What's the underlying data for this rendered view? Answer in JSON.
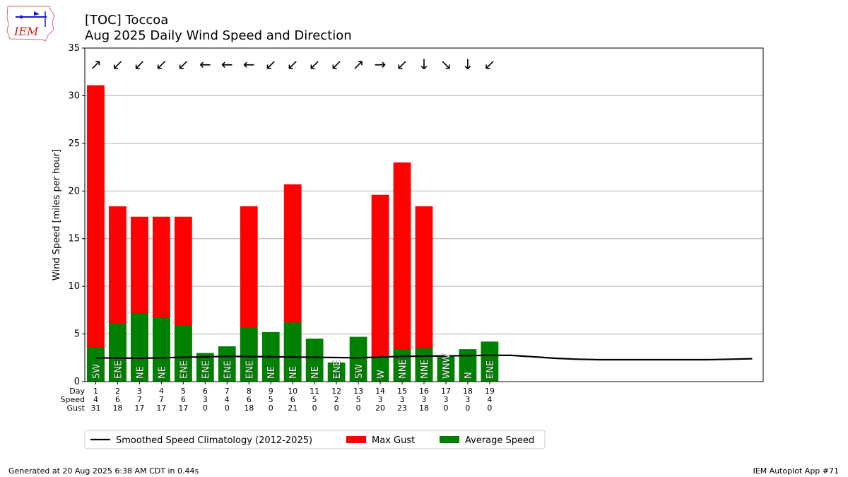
{
  "header": {
    "logo_text": "IEM",
    "title_line1": "[TOC] Toccoa",
    "title_line2": "Aug 2025 Daily Wind Speed and Direction"
  },
  "chart_data": {
    "type": "bar",
    "ylabel": "Wind Speed [miles per hour]",
    "ylim": [
      0,
      35
    ],
    "yticks": [
      0,
      5,
      10,
      15,
      20,
      25,
      30,
      35
    ],
    "xlim": [
      0.5,
      31.5
    ],
    "grid": true,
    "row_labels": [
      "Day",
      "Speed",
      "Gust"
    ],
    "days": [
      1,
      2,
      3,
      4,
      5,
      6,
      7,
      8,
      9,
      10,
      11,
      12,
      13,
      14,
      15,
      16,
      17,
      18,
      19
    ],
    "series": [
      {
        "name": "Max Gust",
        "color": "#ff0000",
        "values": [
          31.1,
          18.4,
          17.3,
          17.3,
          17.3,
          0,
          0,
          18.4,
          0,
          20.7,
          0,
          0,
          0,
          19.6,
          23.0,
          18.4,
          0,
          0,
          0
        ]
      },
      {
        "name": "Average Speed",
        "color": "#008000",
        "values": [
          3.6,
          6.1,
          7.2,
          6.7,
          5.9,
          3.0,
          3.7,
          5.7,
          5.2,
          6.2,
          4.5,
          2.0,
          4.7,
          2.6,
          3.4,
          3.5,
          2.7,
          3.4,
          4.2
        ]
      },
      {
        "name": "Smoothed Speed Climatology (2012-2025)",
        "color": "#000000",
        "x": [
          1,
          3,
          5,
          7,
          9,
          11,
          13,
          15,
          17,
          19,
          20,
          21,
          22,
          23,
          24,
          25,
          26,
          27,
          28,
          29,
          30,
          31
        ],
        "values": [
          2.5,
          2.45,
          2.55,
          2.65,
          2.6,
          2.55,
          2.5,
          2.65,
          2.7,
          2.75,
          2.75,
          2.6,
          2.45,
          2.35,
          2.3,
          2.3,
          2.3,
          2.3,
          2.3,
          2.3,
          2.35,
          2.4
        ]
      }
    ],
    "speed_labels": [
      "4",
      "6",
      "7",
      "7",
      "6",
      "3",
      "4",
      "6",
      "5",
      "6",
      "5",
      "2",
      "5",
      "3",
      "3",
      "3",
      "3",
      "3",
      "4"
    ],
    "gust_labels": [
      "31",
      "18",
      "17",
      "17",
      "17",
      "0",
      "0",
      "18",
      "0",
      "21",
      "0",
      "0",
      "0",
      "20",
      "23",
      "18",
      "0",
      "0",
      "0"
    ],
    "directions": [
      "SW",
      "ENE",
      "NE",
      "NE",
      "ENE",
      "ENE",
      "ENE",
      "ENE",
      "NE",
      "NE",
      "NE",
      "ENE",
      "SW",
      "W",
      "NNE",
      "NNE",
      "WNW",
      "N",
      "ENE"
    ],
    "arrows": [
      "↗",
      "↙",
      "↙",
      "↙",
      "↙",
      "←",
      "←",
      "←",
      "↙",
      "↙",
      "↙",
      "↙",
      "↗",
      "→",
      "↙",
      "↓",
      "↘",
      "↓",
      "↙"
    ],
    "legend": {
      "position": "bottom-left",
      "items": [
        {
          "label": "Smoothed Speed Climatology (2012-2025)",
          "type": "line",
          "color": "#000000"
        },
        {
          "label": "Max Gust",
          "type": "patch",
          "color": "#ff0000"
        },
        {
          "label": "Average Speed",
          "type": "patch",
          "color": "#008000"
        }
      ]
    }
  },
  "footer": {
    "left": "Generated at 20 Aug 2025 6:38 AM CDT in 0.44s",
    "right": "IEM Autoplot App #71"
  }
}
